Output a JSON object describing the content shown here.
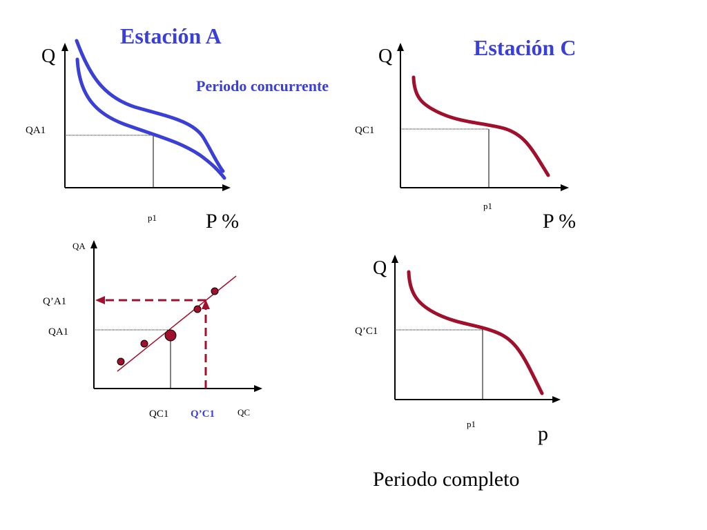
{
  "colors": {
    "blue": "#3a3fd6",
    "red": "#a0102c",
    "axis": "#000000"
  },
  "station_a": {
    "title": "Estación A",
    "period_label": "Periodo concurrente",
    "y_axis": "Q",
    "x_axis": "P %",
    "y_tick": "QA1",
    "x_tick": "p1"
  },
  "station_c": {
    "title": "Estación C",
    "y_axis": "Q",
    "x_axis": "P %",
    "y_tick": "QC1",
    "x_tick": "p1"
  },
  "scatter": {
    "y_axis": "QA",
    "x_axis": "QC",
    "y_ticks": [
      "Q’A1",
      "QA1"
    ],
    "x_ticks": [
      "QC1",
      "Q’C1"
    ]
  },
  "complete": {
    "y_axis": "Q",
    "x_axis": "p",
    "y_tick": "Q’C1",
    "x_tick": "p1",
    "caption": "Periodo completo"
  }
}
